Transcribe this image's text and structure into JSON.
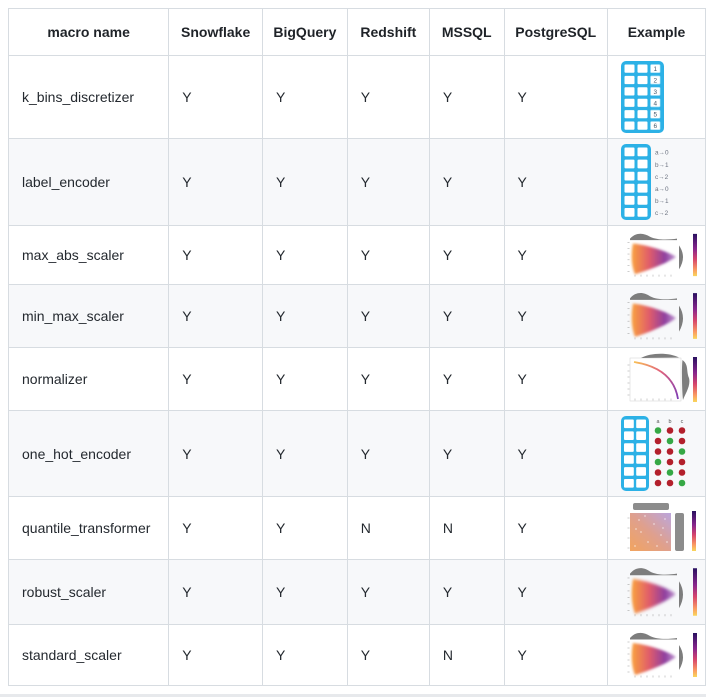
{
  "colors": {
    "accent_blue": "#2cb1e6",
    "dot_green": "#36a845",
    "dot_red": "#b3202c",
    "marginal_gray": "#7d7d7d",
    "border": "#d7dce1",
    "row_stripe": "#f7f8fa",
    "text": "#24292f"
  },
  "table": {
    "columns": [
      {
        "key": "macro_name",
        "label": "macro name"
      },
      {
        "key": "snowflake",
        "label": "Snowflake"
      },
      {
        "key": "bigquery",
        "label": "BigQuery"
      },
      {
        "key": "redshift",
        "label": "Redshift"
      },
      {
        "key": "mssql",
        "label": "MSSQL"
      },
      {
        "key": "postgresql",
        "label": "PostgreSQL"
      },
      {
        "key": "example",
        "label": "Example"
      }
    ],
    "rows": [
      {
        "macro_name": "k_bins_discretizer",
        "snowflake": "Y",
        "bigquery": "Y",
        "redshift": "Y",
        "mssql": "Y",
        "postgresql": "Y",
        "example": {
          "icon": "binned-table-icon",
          "labels": [
            "1",
            "2",
            "3",
            "4",
            "5",
            "6"
          ]
        }
      },
      {
        "macro_name": "label_encoder",
        "snowflake": "Y",
        "bigquery": "Y",
        "redshift": "Y",
        "mssql": "Y",
        "postgresql": "Y",
        "example": {
          "icon": "label-encoded-table-icon",
          "labels": [
            "a→0",
            "b→1",
            "c→2",
            "a→0",
            "b→1",
            "c→2"
          ]
        }
      },
      {
        "macro_name": "max_abs_scaler",
        "snowflake": "Y",
        "bigquery": "Y",
        "redshift": "Y",
        "mssql": "Y",
        "postgresql": "Y",
        "example": {
          "icon": "jointplot-scatter-icon",
          "labels": []
        }
      },
      {
        "macro_name": "min_max_scaler",
        "snowflake": "Y",
        "bigquery": "Y",
        "redshift": "Y",
        "mssql": "Y",
        "postgresql": "Y",
        "example": {
          "icon": "jointplot-scatter-icon",
          "labels": []
        }
      },
      {
        "macro_name": "normalizer",
        "snowflake": "Y",
        "bigquery": "Y",
        "redshift": "Y",
        "mssql": "Y",
        "postgresql": "Y",
        "example": {
          "icon": "jointplot-arc-icon",
          "labels": []
        }
      },
      {
        "macro_name": "one_hot_encoder",
        "snowflake": "Y",
        "bigquery": "Y",
        "redshift": "Y",
        "mssql": "Y",
        "postgresql": "Y",
        "example": {
          "icon": "onehot-table-icon",
          "labels": [
            "a",
            "b",
            "c"
          ]
        }
      },
      {
        "macro_name": "quantile_transformer",
        "snowflake": "Y",
        "bigquery": "Y",
        "redshift": "N",
        "mssql": "N",
        "postgresql": "Y",
        "example": {
          "icon": "uniform-heatmap-icon",
          "labels": []
        }
      },
      {
        "macro_name": "robust_scaler",
        "snowflake": "Y",
        "bigquery": "Y",
        "redshift": "Y",
        "mssql": "Y",
        "postgresql": "Y",
        "example": {
          "icon": "jointplot-scatter-icon",
          "labels": []
        }
      },
      {
        "macro_name": "standard_scaler",
        "snowflake": "Y",
        "bigquery": "Y",
        "redshift": "Y",
        "mssql": "N",
        "postgresql": "Y",
        "example": {
          "icon": "jointplot-scatter-icon",
          "labels": []
        }
      }
    ]
  }
}
